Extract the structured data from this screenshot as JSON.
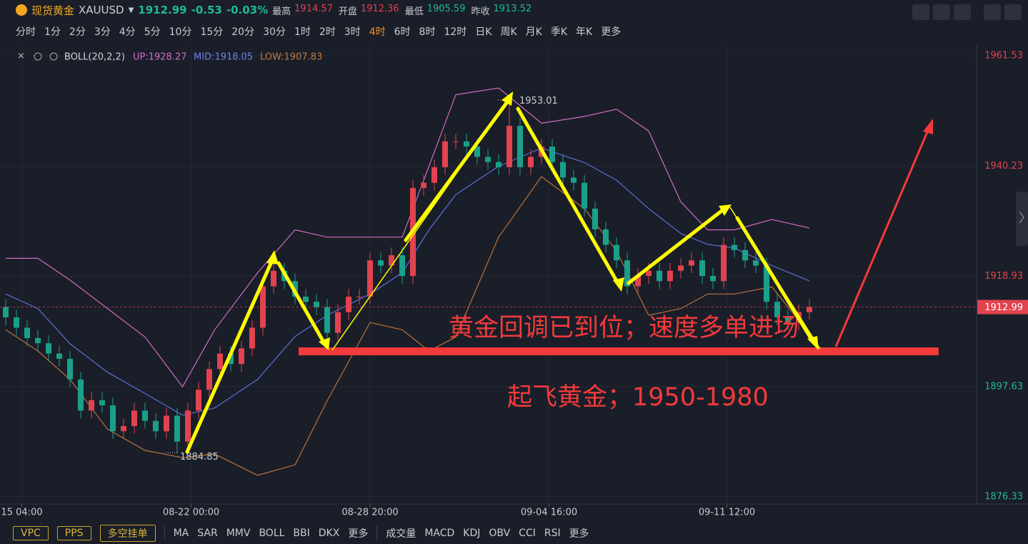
{
  "header": {
    "name": "现货黄金",
    "symbol": "XAUUSD",
    "price": "1912.99",
    "change": "-0.53",
    "change_pct": "-0.03%",
    "stats": [
      {
        "label": "最高",
        "value": "1914.57"
      },
      {
        "label": "开盘",
        "value": "1912.36"
      },
      {
        "label": "最低",
        "value": "1905.59"
      },
      {
        "label": "昨收",
        "value": "1913.52"
      }
    ]
  },
  "timeframes": {
    "items": [
      "分时",
      "1分",
      "2分",
      "3分",
      "4分",
      "5分",
      "10分",
      "15分",
      "20分",
      "30分",
      "1时",
      "2时",
      "3时",
      "4时",
      "6时",
      "8时",
      "12时",
      "日K",
      "周K",
      "月K",
      "季K",
      "年K",
      "更多"
    ],
    "active": "4时"
  },
  "chart_data": {
    "type": "candlestick",
    "indicator": {
      "name": "BOLL(20,2,2)",
      "up": "UP:1928.27",
      "mid": "MID:1918.05",
      "low": "LOW:1907.83"
    },
    "up_color": "#e2434f",
    "down_color": "#1aa08a",
    "open": [
      1913,
      1911,
      1909,
      1907,
      1906,
      1904,
      1903,
      1899,
      1893,
      1895,
      1894,
      1889,
      1890,
      1893,
      1891,
      1889,
      1892,
      1887,
      1893,
      1897,
      1901,
      1904,
      1902,
      1905,
      1909,
      1917,
      1920,
      1918,
      1915,
      1914,
      1913,
      1908,
      1912,
      1915,
      1915,
      1922,
      1921,
      1923,
      1919,
      1936,
      1937,
      1940,
      1945,
      1945,
      1944,
      1942,
      1941,
      1940,
      1948,
      1940,
      1942,
      1944,
      1941,
      1938,
      1937,
      1932,
      1928,
      1925,
      1922,
      1917,
      1919,
      1920,
      1918,
      1920,
      1921,
      1922,
      1919,
      1918,
      1925,
      1924,
      1922,
      1921,
      1914,
      1911,
      1910,
      1912
    ],
    "high": [
      1914.5,
      1912.5,
      1910.5,
      1908.5,
      1907.5,
      1905.5,
      1904.5,
      1900.5,
      1896.5,
      1896.5,
      1895.5,
      1891.5,
      1894.5,
      1894.5,
      1892.5,
      1893.5,
      1893.5,
      1894.5,
      1898.5,
      1902.5,
      1905.5,
      1905.5,
      1906.5,
      1910.5,
      1918.5,
      1921.5,
      1921.5,
      1919.5,
      1916.5,
      1915.5,
      1914.5,
      1913.5,
      1916.5,
      1916.5,
      1923.5,
      1923.5,
      1924.5,
      1924.5,
      1937.5,
      1938.5,
      1941.5,
      1946.5,
      1946.5,
      1946.5,
      1945.5,
      1943.5,
      1942.5,
      1953.01,
      1949.5,
      1943.5,
      1945.5,
      1945.5,
      1942.5,
      1939.5,
      1938.5,
      1933.5,
      1929.5,
      1926.5,
      1923.5,
      1920.5,
      1921.5,
      1921.5,
      1921.5,
      1922.5,
      1923.5,
      1923.5,
      1920.5,
      1926.5,
      1926.5,
      1925.5,
      1923.5,
      1922.5,
      1915.5,
      1912.5,
      1913.5,
      1914.49
    ],
    "low": [
      1909.5,
      1907.5,
      1905.5,
      1904.5,
      1902.5,
      1901.5,
      1897.5,
      1891.5,
      1891.5,
      1892.5,
      1887.5,
      1887.5,
      1888.5,
      1889.5,
      1887.5,
      1887.5,
      1884.85,
      1885.5,
      1891.5,
      1895.5,
      1899.5,
      1900.5,
      1900.5,
      1903.5,
      1907.5,
      1915.5,
      1916.5,
      1913.5,
      1912.5,
      1911.5,
      1906.5,
      1906.5,
      1910.5,
      1913.5,
      1913.5,
      1919.5,
      1919.5,
      1917.5,
      1917.5,
      1934.5,
      1935.5,
      1938.5,
      1943.5,
      1942.5,
      1940.5,
      1939.5,
      1938.5,
      1938.5,
      1938.5,
      1938.5,
      1940.5,
      1939.5,
      1936.5,
      1935.5,
      1930.5,
      1926.5,
      1923.5,
      1920.5,
      1915.5,
      1915.5,
      1917.5,
      1916.5,
      1916.5,
      1918.5,
      1919.5,
      1917.5,
      1916.5,
      1916.5,
      1922.5,
      1920.5,
      1919.5,
      1912.5,
      1909.5,
      1908.5,
      1908.5,
      1910.5
    ],
    "close": [
      1911,
      1909,
      1907,
      1906,
      1904,
      1903,
      1899,
      1893,
      1895,
      1894,
      1889,
      1890,
      1893,
      1891,
      1889,
      1892,
      1887,
      1893,
      1897,
      1901,
      1904,
      1902,
      1905,
      1909,
      1917,
      1920,
      1918,
      1915,
      1914,
      1913,
      1908,
      1912,
      1915,
      1915,
      1922,
      1921,
      1923,
      1919,
      1936,
      1937,
      1940,
      1945,
      1945,
      1944,
      1942,
      1941,
      1940,
      1948,
      1940,
      1942,
      1944,
      1941,
      1938,
      1937,
      1932,
      1928,
      1925,
      1922,
      1917,
      1919,
      1920,
      1918,
      1920,
      1921,
      1922,
      1919,
      1918,
      1925,
      1924,
      1922,
      1921,
      1914,
      1911,
      1910,
      1912,
      1912.99
    ],
    "bands": {
      "x": [
        0,
        3,
        6,
        9.5,
        13,
        16.5,
        19.5,
        23.5,
        27,
        30,
        34,
        37,
        39.5,
        42,
        46,
        50,
        54,
        57,
        60,
        63,
        65.5,
        68,
        71.5,
        75
      ],
      "upper": {
        "color": "#d46bc4",
        "values": [
          1922.4,
          1922.4,
          1918.2,
          1912.7,
          1907.2,
          1897.6,
          1908.6,
          1919.6,
          1927.9,
          1926.5,
          1926.5,
          1926.5,
          1940.2,
          1954,
          1955.3,
          1948.5,
          1949.8,
          1951.2,
          1947,
          1933.3,
          1927.9,
          1927.9,
          1929.9,
          1928.27
        ]
      },
      "mid": {
        "color": "#5d6fd8",
        "values": [
          1915.5,
          1912.7,
          1905.9,
          1900.4,
          1896.3,
          1892.1,
          1893.5,
          1899,
          1907.3,
          1911.4,
          1915.5,
          1919.6,
          1927.9,
          1934.7,
          1940.2,
          1943.7,
          1940.9,
          1937.5,
          1932,
          1927.2,
          1925.1,
          1924.4,
          1921,
          1918.05
        ]
      },
      "lower": {
        "color": "#b8733a",
        "values": [
          1908.6,
          1904.5,
          1899,
          1889.4,
          1885.3,
          1883.9,
          1884.6,
          1880.5,
          1882.5,
          1894.9,
          1910,
          1908.6,
          1904.5,
          1907.2,
          1926.5,
          1938.2,
          1932,
          1923.8,
          1911.4,
          1912.7,
          1915.5,
          1915.5,
          1916.9,
          1907.83
        ]
      }
    },
    "ylim": [
      1876.33,
      1961.53
    ],
    "yticks": [
      1876.33,
      1897.63,
      1918.93,
      1940.23,
      1961.53
    ],
    "xlim": [
      -0.5,
      90
    ],
    "xticks": [
      {
        "value": 1.5,
        "label": "15 04:00"
      },
      {
        "value": 17.3,
        "label": "08-22 00:00"
      },
      {
        "value": 34,
        "label": "08-28 20:00"
      },
      {
        "value": 50.7,
        "label": "09-04 16:00"
      },
      {
        "value": 67.3,
        "label": "09-11 12:00"
      }
    ],
    "last_price": 1912.99,
    "annotations": [
      "黄金回调已到位；速度多单进场",
      "起飞黄金；1950-1980"
    ]
  },
  "toolbar": {
    "left": [
      "VPC",
      "PPS",
      "多空挂单"
    ],
    "main": [
      "MA",
      "SAR",
      "MMV",
      "BOLL",
      "BBI",
      "DKX",
      "更多"
    ],
    "sub": [
      "成交量",
      "MACD",
      "KDJ",
      "OBV",
      "CCI",
      "RSI",
      "更多"
    ]
  }
}
